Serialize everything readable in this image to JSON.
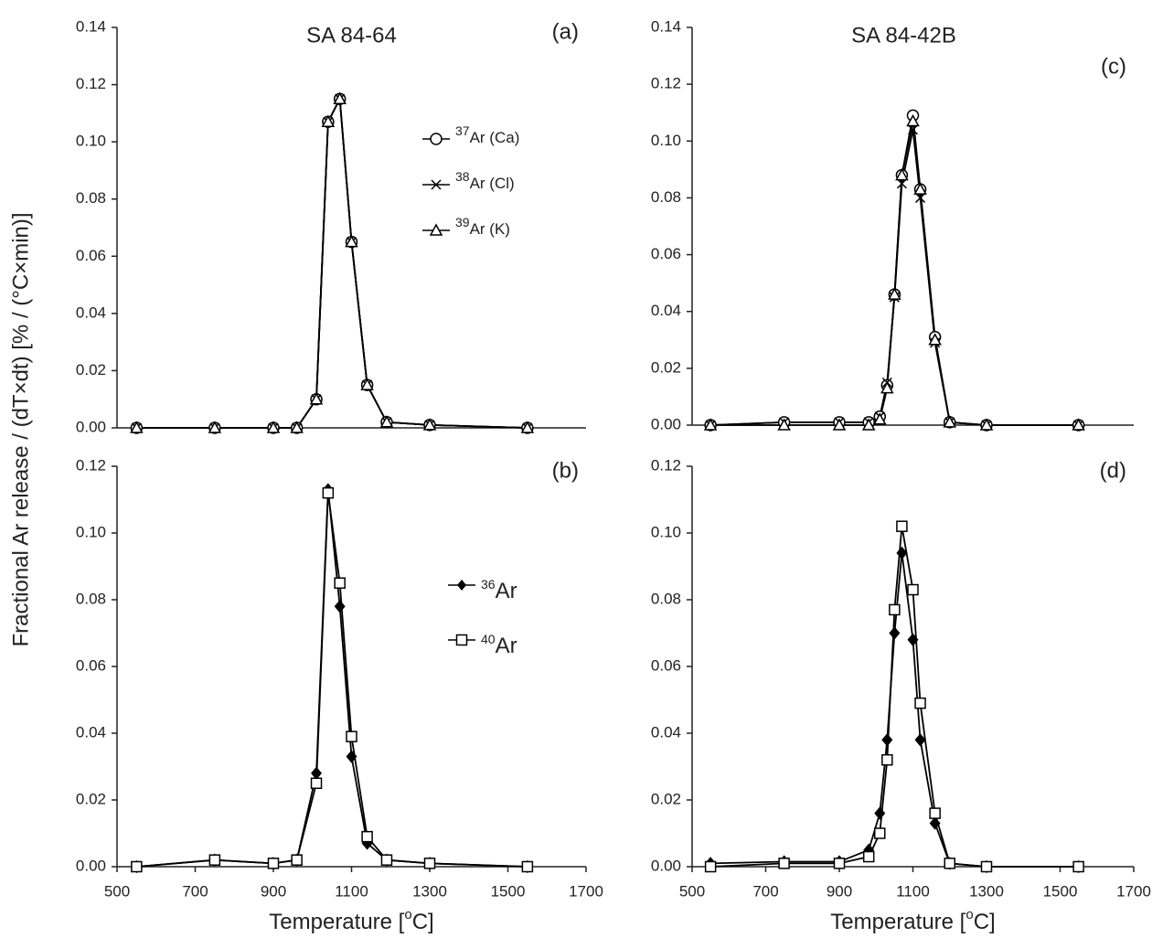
{
  "y_label": "Fractional Ar release / (dT×dt) [% / (°C×min)]",
  "chart_data": [
    {
      "type": "line",
      "title": "SA 84-64",
      "panel": "(a)",
      "legend": "upper right",
      "x": [
        550,
        750,
        900,
        960,
        1010,
        1040,
        1070,
        1100,
        1140,
        1190,
        1300,
        1550
      ],
      "xlim": [
        500,
        1700
      ],
      "ylim": [
        0,
        0.14
      ],
      "yticks": [
        {
          "value": 0,
          "label": "0.00"
        },
        {
          "value": 0.02,
          "label": "0.02"
        },
        {
          "value": 0.04,
          "label": "0.04"
        },
        {
          "value": 0.06,
          "label": "0.06"
        },
        {
          "value": 0.08,
          "label": "0.08"
        },
        {
          "value": 0.1,
          "label": "0.10"
        },
        {
          "value": 0.12,
          "label": "0.12"
        },
        {
          "value": 0.14,
          "label": "0.14"
        }
      ],
      "series": [
        {
          "isotope": "37",
          "name": "Ar (Ca)",
          "marker": "circle",
          "color": "#000000",
          "values": [
            0,
            0,
            0,
            0,
            0.01,
            0.107,
            0.115,
            0.065,
            0.015,
            0.002,
            0.001,
            0
          ]
        },
        {
          "isotope": "38",
          "name": "Ar (Cl)",
          "marker": "cross",
          "color": "#000000",
          "values": [
            0,
            0,
            0,
            0,
            0.01,
            0.107,
            0.115,
            0.065,
            0.015,
            0.002,
            0.001,
            0
          ]
        },
        {
          "isotope": "39",
          "name": "Ar (K)",
          "marker": "triangle",
          "color": "#000000",
          "values": [
            0,
            0,
            0,
            0,
            0.01,
            0.107,
            0.115,
            0.065,
            0.015,
            0.002,
            0.001,
            0
          ]
        }
      ]
    },
    {
      "type": "line",
      "panel": "(b)",
      "legend": "center right",
      "x": [
        550,
        750,
        900,
        960,
        1010,
        1040,
        1070,
        1100,
        1140,
        1190,
        1300,
        1550
      ],
      "xlim": [
        500,
        1700
      ],
      "xticks": [
        500,
        700,
        900,
        1100,
        1300,
        1500,
        1700
      ],
      "x_label": [
        "Temperature [",
        "o",
        "C]"
      ],
      "ylim": [
        0,
        0.12
      ],
      "yticks": [
        {
          "value": 0,
          "label": "0.00"
        },
        {
          "value": 0.02,
          "label": "0.02"
        },
        {
          "value": 0.04,
          "label": "0.04"
        },
        {
          "value": 0.06,
          "label": "0.06"
        },
        {
          "value": 0.08,
          "label": "0.08"
        },
        {
          "value": 0.1,
          "label": "0.10"
        },
        {
          "value": 0.12,
          "label": "0.12"
        }
      ],
      "series": [
        {
          "isotope": "36",
          "name": "Ar",
          "marker": "diamond",
          "color": "#000000",
          "values": [
            0,
            0.002,
            0.001,
            0.002,
            0.028,
            0.113,
            0.078,
            0.033,
            0.007,
            0.002,
            0.001,
            0
          ]
        },
        {
          "isotope": "40",
          "name": "Ar",
          "marker": "square",
          "color": "#000000",
          "values": [
            0,
            0.002,
            0.001,
            0.002,
            0.025,
            0.112,
            0.085,
            0.039,
            0.009,
            0.002,
            0.001,
            0
          ]
        }
      ]
    },
    {
      "type": "line",
      "title": "SA 84-42B",
      "panel": "(c)",
      "x": [
        550,
        750,
        900,
        980,
        1010,
        1030,
        1050,
        1070,
        1100,
        1120,
        1160,
        1200,
        1300,
        1550
      ],
      "xlim": [
        500,
        1700
      ],
      "ylim": [
        0,
        0.14
      ],
      "yticks": [
        {
          "value": 0,
          "label": "0.00"
        },
        {
          "value": 0.02,
          "label": "0.02"
        },
        {
          "value": 0.04,
          "label": "0.04"
        },
        {
          "value": 0.06,
          "label": "0.06"
        },
        {
          "value": 0.08,
          "label": "0.08"
        },
        {
          "value": 0.1,
          "label": "0.10"
        },
        {
          "value": 0.12,
          "label": "0.12"
        },
        {
          "value": 0.14,
          "label": "0.14"
        }
      ],
      "series": [
        {
          "marker": "circle",
          "color": "#000000",
          "values": [
            0,
            0.001,
            0.001,
            0.001,
            0.003,
            0.014,
            0.046,
            0.088,
            0.109,
            0.083,
            0.031,
            0.001,
            0,
            0
          ]
        },
        {
          "marker": "cross",
          "color": "#000000",
          "values": [
            0,
            0.001,
            0.001,
            0.001,
            0.003,
            0.015,
            0.045,
            0.085,
            0.104,
            0.08,
            0.029,
            0.001,
            0,
            0
          ]
        },
        {
          "marker": "triangle",
          "color": "#000000",
          "values": [
            0,
            0,
            0,
            0,
            0.002,
            0.013,
            0.046,
            0.088,
            0.107,
            0.083,
            0.03,
            0.001,
            0,
            0
          ]
        }
      ]
    },
    {
      "type": "line",
      "panel": "(d)",
      "x": [
        550,
        750,
        900,
        980,
        1010,
        1030,
        1050,
        1070,
        1100,
        1120,
        1160,
        1200,
        1300,
        1550
      ],
      "xlim": [
        500,
        1700
      ],
      "xticks": [
        500,
        700,
        900,
        1100,
        1300,
        1500,
        1700
      ],
      "x_label": [
        "Temperature [",
        "o",
        "C]"
      ],
      "ylim": [
        0,
        0.12
      ],
      "yticks": [
        {
          "value": 0,
          "label": "0.00"
        },
        {
          "value": 0.02,
          "label": "0.02"
        },
        {
          "value": 0.04,
          "label": "0.04"
        },
        {
          "value": 0.06,
          "label": "0.06"
        },
        {
          "value": 0.08,
          "label": "0.08"
        },
        {
          "value": 0.1,
          "label": "0.10"
        },
        {
          "value": 0.12,
          "label": "0.12"
        }
      ],
      "series": [
        {
          "marker": "diamond",
          "color": "#000000",
          "values": [
            0.001,
            0.0015,
            0.0015,
            0.005,
            0.016,
            0.038,
            0.07,
            0.094,
            0.068,
            0.038,
            0.013,
            0.001,
            0,
            0
          ]
        },
        {
          "marker": "square",
          "color": "#000000",
          "values": [
            0,
            0.001,
            0.001,
            0.003,
            0.01,
            0.032,
            0.077,
            0.102,
            0.083,
            0.049,
            0.016,
            0.001,
            0,
            0
          ]
        }
      ]
    }
  ]
}
